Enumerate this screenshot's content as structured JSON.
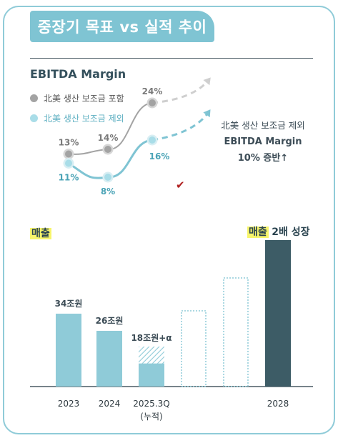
{
  "title": "중장기 목표 vs 실적 추이",
  "margin_section": {
    "label": "EBITDA Margin",
    "legend": [
      {
        "name": "北美 생산 보조금 포함",
        "color": "#a3a3a3"
      },
      {
        "name": "北美 생산 보조금 제외",
        "color": "#7fc4d3"
      }
    ],
    "annotation": {
      "line1": "北美 생산 보조금 제외",
      "line2": "EBITDA Margin",
      "line3": "10% 증반↑"
    }
  },
  "sales_label": "매출",
  "growth_label": {
    "highlight": "매출",
    "rest": "2배 성장"
  },
  "colors": {
    "accent": "#7fc4d3",
    "bar": "#8fcbd8",
    "bar_dark": "#3d5c66",
    "gray": "#a3a3a3",
    "check": "#b02020"
  },
  "chart_data": [
    {
      "type": "line",
      "title": "EBITDA Margin",
      "categories": [
        "2023",
        "2024",
        "2025.3Q"
      ],
      "series": [
        {
          "name": "北美 생산 보조금 포함",
          "values": [
            13,
            14,
            24
          ],
          "labels": [
            "13%",
            "14%",
            "24%"
          ],
          "color": "#a3a3a3"
        },
        {
          "name": "北美 생산 보조금 제외",
          "values": [
            11,
            8,
            16
          ],
          "labels": [
            "11%",
            "8%",
            "16%"
          ],
          "color": "#7fc4d3"
        }
      ],
      "projection": "dashed-arrow-up",
      "check_mark": "✔"
    },
    {
      "type": "bar",
      "title": "매출",
      "categories": [
        "2023",
        "2024",
        "2025.3Q",
        "",
        "",
        "2028"
      ],
      "sublabels": [
        "",
        "",
        "(누적)",
        "",
        "",
        ""
      ],
      "values": [
        34,
        26,
        18,
        null,
        null,
        null
      ],
      "value_labels": [
        "34조원",
        "26조원",
        "18조원+α",
        "",
        "",
        ""
      ],
      "bar_styles": [
        "solid",
        "solid",
        "solid-hatched-top",
        "dotted-outline",
        "dotted-outline",
        "solid-dark"
      ]
    }
  ]
}
